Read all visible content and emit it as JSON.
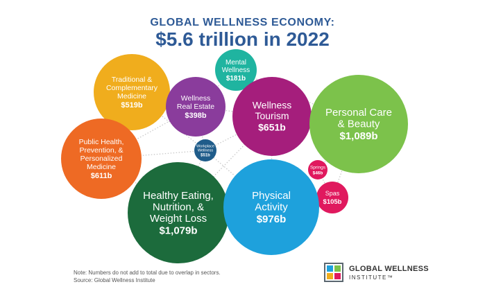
{
  "header": {
    "line1": "GLOBAL WELLNESS ECONOMY:",
    "line2": "$5.6 trillion in 2022"
  },
  "chart_data": {
    "type": "bubble",
    "title": "GLOBAL WELLNESS ECONOMY: $5.6 trillion in 2022",
    "unit": "$ billions",
    "sectors": [
      {
        "label": [
          "Traditional &",
          "Complementary",
          "Medicine"
        ],
        "value_label": "$519b",
        "value": 519,
        "color": "#f0ad1d"
      },
      {
        "label": [
          "Wellness",
          "Real Estate"
        ],
        "value_label": "$398b",
        "value": 398,
        "color": "#8a3c9c"
      },
      {
        "label": [
          "Mental",
          "Wellness"
        ],
        "value_label": "$181b",
        "value": 181,
        "color": "#1fb4a0"
      },
      {
        "label": [
          "Wellness",
          "Tourism"
        ],
        "value_label": "$651b",
        "value": 651,
        "color": "#a51e7c"
      },
      {
        "label": [
          "Personal Care",
          "& Beauty"
        ],
        "value_label": "$1,089b",
        "value": 1089,
        "color": "#7cc24b"
      },
      {
        "label": [
          "Public Health,",
          "Prevention, &",
          "Personalized",
          "Medicine"
        ],
        "value_label": "$611b",
        "value": 611,
        "color": "#ee6a24"
      },
      {
        "label": [
          "Workplace",
          "Wellness"
        ],
        "value_label": "$51b",
        "value": 51,
        "color": "#1f5c8a"
      },
      {
        "label": [
          "Springs"
        ],
        "value_label": "$46b",
        "value": 46,
        "color": "#e0195e"
      },
      {
        "label": [
          "Spas"
        ],
        "value_label": "$105b",
        "value": 105,
        "color": "#e0195e"
      },
      {
        "label": [
          "Healthy Eating,",
          "Nutrition, &",
          "Weight Loss"
        ],
        "value_label": "$1,079b",
        "value": 1079,
        "color": "#1c6b3c"
      },
      {
        "label": [
          "Physical",
          "Activity"
        ],
        "value_label": "$976b",
        "value": 976,
        "color": "#1ea1dc"
      }
    ]
  },
  "footer": {
    "note": "Note: Numbers do not add to total due to overlap in sectors.",
    "source": "Source: Global Wellness Institute",
    "brand_line1": "GLOBAL WELLNESS",
    "brand_line2": "INSTITUTE™"
  },
  "colors": {
    "title": "#2e5a96",
    "connector": "#c8c8c8"
  }
}
